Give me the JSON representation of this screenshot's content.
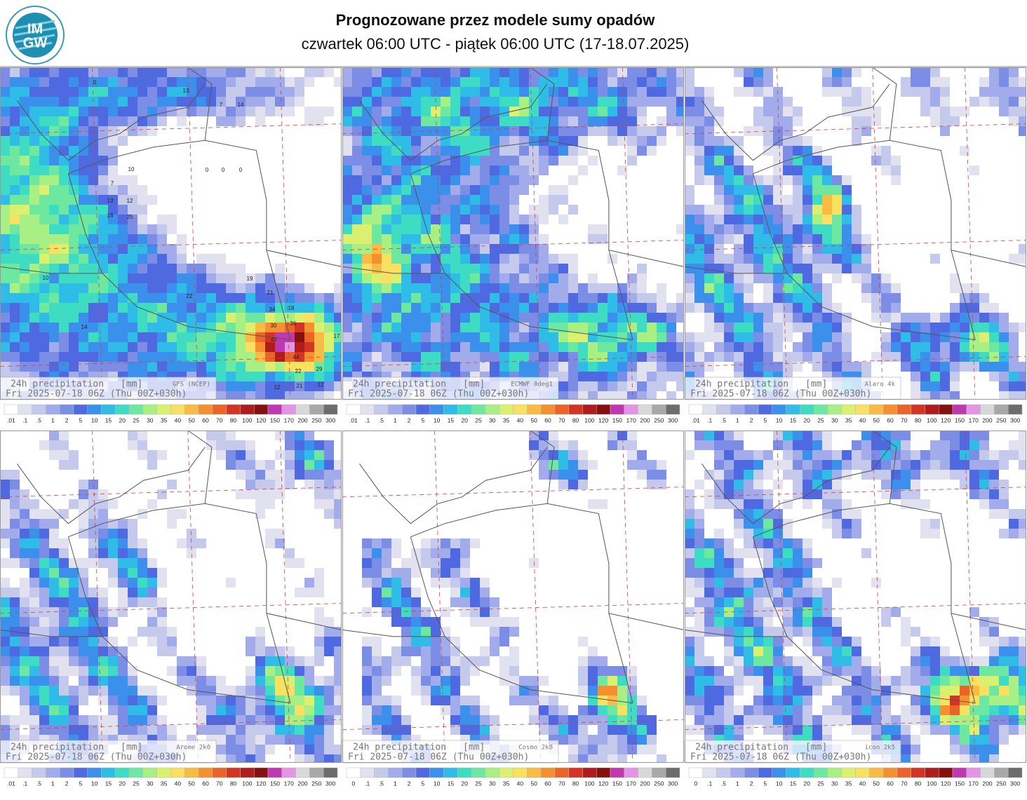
{
  "header": {
    "title": "Prognozowane przez modele sumy opadów",
    "subtitle": "czwartek 06:00 UTC - piątek 06:00 UTC (17-18.07.2025)",
    "logo": {
      "top": "IM",
      "bottom": "GW"
    }
  },
  "colorbar_colors": [
    "#ffffff",
    "#e1e1f0",
    "#c5c9ec",
    "#a3acea",
    "#7c8de6",
    "#4f6ae0",
    "#3a90ea",
    "#2fbde8",
    "#3fdcc4",
    "#6ee8a0",
    "#a8f084",
    "#dcf070",
    "#f8e060",
    "#f8bc44",
    "#f49030",
    "#ea6428",
    "#d43422",
    "#b01c1c",
    "#861010",
    "#c038b0",
    "#e494e4",
    "#d8d8d8",
    "#a8a8a8",
    "#6c6c6c"
  ],
  "panels": [
    {
      "label": "24h precipitation",
      "unit": "[mm]",
      "model": "GFS (NCEP)",
      "valid": "Fri 2025-07-18 06Z (Thu 00Z+030h)",
      "scale": [
        ".01",
        ".1",
        ".5",
        "1",
        "2",
        "5",
        "10",
        "15",
        "20",
        "25",
        "30",
        "35",
        "40",
        "50",
        "60",
        "70",
        "80",
        "100",
        "120",
        "150",
        "170",
        "200",
        "250",
        "300"
      ],
      "grid_values": [
        13,
        14,
        7,
        10,
        13,
        12,
        16,
        25,
        7,
        22,
        19,
        21,
        30,
        36,
        40,
        44,
        34,
        18,
        29,
        22,
        12,
        21,
        12,
        17,
        14,
        10,
        0,
        0,
        0,
        0
      ]
    },
    {
      "label": "24h precipitation",
      "unit": "[mm]",
      "model": "ECMWF 0deg1",
      "valid": "Fri 2025-07-18 06Z (Thu 00Z+030h)",
      "scale": [
        ".01",
        ".1",
        ".5",
        "1",
        "2",
        "5",
        "10",
        "15",
        "20",
        "25",
        "30",
        "35",
        "40",
        "50",
        "60",
        "70",
        "80",
        "100",
        "120",
        "150",
        "170",
        "200",
        "250",
        "300"
      ]
    },
    {
      "label": "24h precipitation",
      "unit": "[mm]",
      "model": "Alaro 4k",
      "valid": "Fri 2025-07-18 06Z (Thu 00Z+030h)",
      "scale": [
        ".01",
        ".1",
        ".5",
        "1",
        "2",
        "5",
        "10",
        "15",
        "20",
        "25",
        "30",
        "35",
        "40",
        "50",
        "60",
        "70",
        "80",
        "100",
        "120",
        "150",
        "170",
        "200",
        "250",
        "300"
      ]
    },
    {
      "label": "24h precipitation",
      "unit": "[mm]",
      "model": "Arome 2k0",
      "valid": "Fri 2025-07-18 06Z (Thu 00Z+030h)",
      "scale": [
        ".01",
        ".1",
        ".5",
        "1",
        "2",
        "5",
        "10",
        "15",
        "20",
        "25",
        "30",
        "35",
        "40",
        "50",
        "60",
        "70",
        "80",
        "100",
        "120",
        "150",
        "170",
        "200",
        "250",
        "300"
      ]
    },
    {
      "label": "24h precipitation",
      "unit": "[mm]",
      "model": "Cosmo 2k8",
      "valid": "Fri 2025-07-18 06Z (Thu 00Z+030h)",
      "scale": [
        "0",
        ".1",
        ".5",
        "1",
        "2",
        "5",
        "10",
        "15",
        "20",
        "25",
        "30",
        "35",
        "40",
        "50",
        "60",
        "70",
        "80",
        "100",
        "120",
        "150",
        "170",
        "200",
        "250",
        "300"
      ]
    },
    {
      "label": "24h precipitation",
      "unit": "[mm]",
      "model": "icon 2k5",
      "valid": "Fri 2025-07-18 06Z (Thu 00Z+030h)",
      "scale": [
        "0",
        ".1",
        ".5",
        "1",
        "2",
        "5",
        "10",
        "15",
        "20",
        "25",
        "30",
        "35",
        "40",
        "50",
        "60",
        "70",
        "80",
        "100",
        "120",
        "150",
        "170",
        "200",
        "250",
        "300"
      ]
    }
  ]
}
